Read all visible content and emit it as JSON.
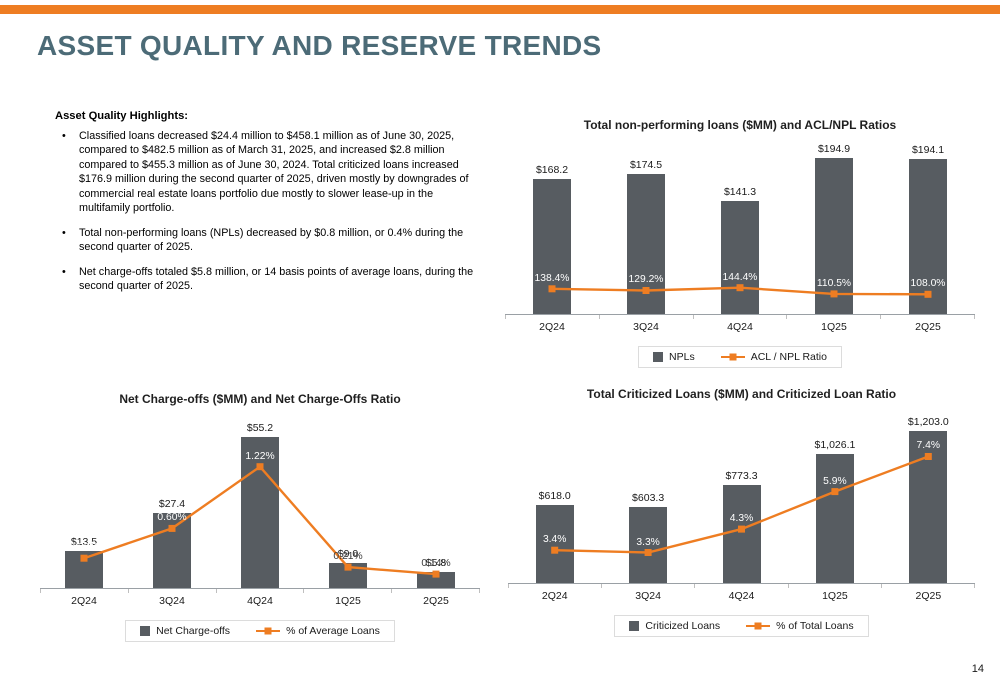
{
  "page": {
    "title": "ASSET QUALITY AND RESERVE TRENDS",
    "page_number": "14",
    "accent_orange": "#EE7D22",
    "bar_gray": "#575C61",
    "title_color": "#4C6B77"
  },
  "highlights": {
    "heading": "Asset Quality Highlights:",
    "bullets": [
      "Classified loans decreased $24.4 million to $458.1 million as of June 30, 2025, compared to $482.5 million as of March 31, 2025, and increased $2.8 million compared to $455.3 million as of June 30, 2024. Total criticized loans increased $176.9 million during the second quarter of 2025, driven mostly by downgrades of commercial real estate loans portfolio due mostly to slower lease-up in the multifamily portfolio.",
      "Total non-performing loans (NPLs) decreased by $0.8 million, or 0.4% during the second quarter of 2025.",
      "Net charge-offs totaled $5.8 million, or 14 basis points of average loans, during the second quarter of 2025."
    ]
  },
  "chart_data": [
    {
      "type": "bar",
      "title": "Total non-performing loans ($MM) and ACL/NPL Ratios",
      "categories": [
        "2Q24",
        "3Q24",
        "4Q24",
        "1Q25",
        "2Q25"
      ],
      "series": [
        {
          "name": "NPLs",
          "type": "bar",
          "values": [
            168.2,
            174.5,
            141.3,
            194.9,
            194.1
          ],
          "labels": [
            "$168.2",
            "$174.5",
            "$141.3",
            "$194.9",
            "$194.1"
          ]
        },
        {
          "name": "ACL / NPL Ratio",
          "type": "line",
          "values": [
            138.4,
            129.2,
            144.4,
            110.5,
            108.0
          ],
          "labels": [
            "138.4%",
            "129.2%",
            "144.4%",
            "110.5%",
            "108.0%"
          ]
        }
      ],
      "ylim": [
        0,
        205
      ],
      "y2lim": [
        0,
        900
      ],
      "grid": false,
      "legend_position": "bottom"
    },
    {
      "type": "bar",
      "title": "Net Charge-offs ($MM) and Net Charge-Offs Ratio",
      "categories": [
        "2Q24",
        "3Q24",
        "4Q24",
        "1Q25",
        "2Q25"
      ],
      "series": [
        {
          "name": "Net Charge-offs",
          "type": "bar",
          "values": [
            13.5,
            27.4,
            55.2,
            9.0,
            5.8
          ],
          "labels": [
            "$13.5",
            "$27.4",
            "$55.2",
            "$9.0",
            "$5.8"
          ]
        },
        {
          "name": "% of Average Loans",
          "type": "line",
          "values": [
            0.3,
            0.6,
            1.22,
            0.21,
            0.14
          ],
          "labels": [
            "0.30%",
            "0.60%",
            "1.22%",
            "0.21%",
            "0.14%"
          ]
        }
      ],
      "ylim": [
        0,
        60
      ],
      "y2lim": [
        0,
        1.65
      ],
      "grid": false,
      "legend_position": "bottom"
    },
    {
      "type": "bar",
      "title": "Total Criticized Loans ($MM) and Criticized Loan Ratio",
      "categories": [
        "2Q24",
        "3Q24",
        "4Q24",
        "1Q25",
        "2Q25"
      ],
      "series": [
        {
          "name": "Criticized Loans",
          "type": "bar",
          "values": [
            618.0,
            603.3,
            773.3,
            1026.1,
            1203.0
          ],
          "labels": [
            "$618.0",
            "$603.3",
            "$773.3",
            "$1,026.1",
            "$1,203.0"
          ]
        },
        {
          "name": "% of Total Loans",
          "type": "line",
          "values": [
            3.4,
            3.3,
            4.3,
            5.9,
            7.4
          ],
          "labels": [
            "3.4%",
            "3.3%",
            "4.3%",
            "5.9%",
            "7.4%"
          ]
        }
      ],
      "ylim": [
        0,
        1300
      ],
      "y2lim": [
        2,
        9
      ],
      "grid": false,
      "legend_position": "bottom"
    }
  ]
}
